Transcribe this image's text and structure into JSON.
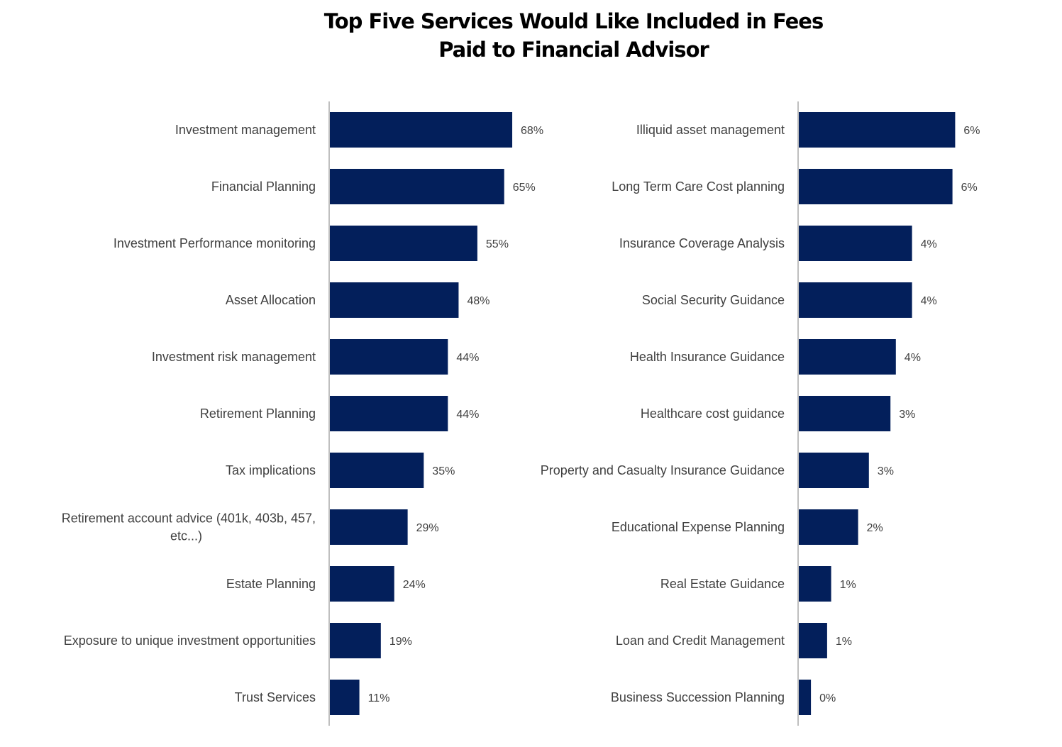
{
  "title_lines": [
    "Top Five Services Would Like Included in Fees",
    "Paid to Financial Advisor"
  ],
  "colors": {
    "bar": "#031f5b",
    "axis": "#bfbfbf",
    "text": "#404040"
  },
  "chart_data": [
    {
      "type": "bar",
      "orientation": "horizontal",
      "categories": [
        "Investment management",
        "Financial Planning",
        "Investment Performance monitoring",
        "Asset Allocation",
        "Investment risk management",
        "Retirement Planning",
        "Tax implications",
        "Retirement account advice (401k, 403b, 457, etc...)",
        "Estate Planning",
        "Exposure to unique investment opportunities",
        "Trust Services"
      ],
      "values": [
        68,
        65,
        55,
        48,
        44,
        44,
        35,
        29,
        24,
        19,
        11
      ],
      "data_labels": [
        "68%",
        "65%",
        "55%",
        "48%",
        "44%",
        "44%",
        "35%",
        "29%",
        "24%",
        "19%",
        "11%"
      ],
      "xlim": [
        0,
        100
      ],
      "grid": false
    },
    {
      "type": "bar",
      "orientation": "horizontal",
      "categories": [
        "Illiquid asset management",
        "Long Term Care Cost planning",
        "Insurance Coverage Analysis",
        "Social Security Guidance",
        "Health Insurance Guidance",
        "Healthcare cost guidance",
        "Property and Casualty Insurance Guidance",
        "Educational Expense Planning",
        "Real Estate Guidance",
        "Loan and Credit Management",
        "Business Succession Planning"
      ],
      "values": [
        5.8,
        5.7,
        4.2,
        4.2,
        3.6,
        3.4,
        2.6,
        2.2,
        1.2,
        1.05,
        0.45
      ],
      "data_labels": [
        "6%",
        "6%",
        "4%",
        "4%",
        "4%",
        "3%",
        "3%",
        "2%",
        "1%",
        "1%",
        "0%"
      ],
      "xlim": [
        0,
        10
      ],
      "grid": false
    }
  ]
}
